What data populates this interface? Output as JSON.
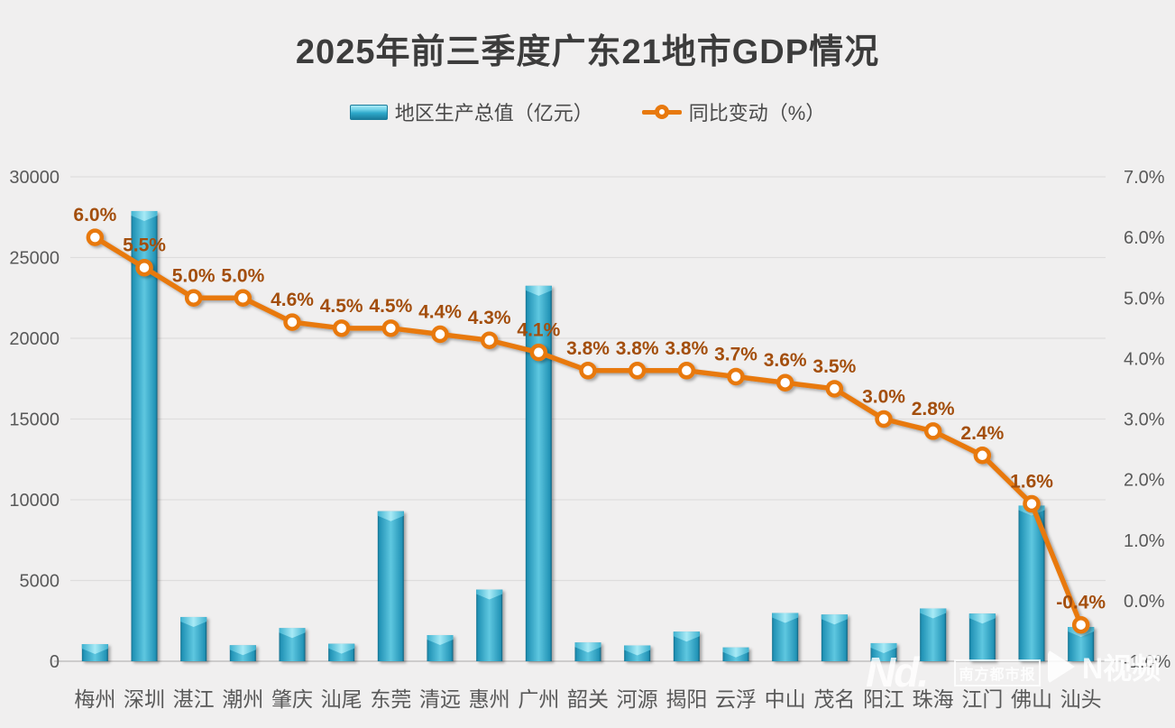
{
  "title": "2025年前三季度广东21地市GDP情况",
  "legend": {
    "bar_label": "地区生产总值（亿元）",
    "line_label": "同比变动（%）"
  },
  "chart_data": {
    "type": "bar",
    "title": "2025年前三季度广东21地市GDP情况",
    "categories": [
      "梅州",
      "深圳",
      "湛江",
      "潮州",
      "肇庆",
      "汕尾",
      "东莞",
      "清远",
      "惠州",
      "广州",
      "韶关",
      "河源",
      "揭阳",
      "云浮",
      "中山",
      "茂名",
      "阳江",
      "珠海",
      "江门",
      "佛山",
      "汕头"
    ],
    "series": [
      {
        "name": "地区生产总值（亿元）",
        "type": "bar",
        "axis": "left",
        "values": [
          1060,
          27880,
          2740,
          990,
          2050,
          1080,
          9290,
          1620,
          4440,
          23250,
          1160,
          980,
          1830,
          850,
          2990,
          2890,
          1120,
          3270,
          2950,
          9640,
          2120
        ]
      },
      {
        "name": "同比变动（%）",
        "type": "line",
        "axis": "right",
        "values": [
          6.0,
          5.5,
          5.0,
          5.0,
          4.6,
          4.5,
          4.5,
          4.4,
          4.3,
          4.1,
          3.8,
          3.8,
          3.8,
          3.7,
          3.6,
          3.5,
          3.0,
          2.8,
          2.4,
          1.6,
          -0.4
        ],
        "labels": [
          "6.0%",
          "5.5%",
          "5.0%",
          "5.0%",
          "4.6%",
          "4.5%",
          "4.5%",
          "4.4%",
          "4.3%",
          "4.1%",
          "3.8%",
          "3.8%",
          "3.8%",
          "3.7%",
          "3.6%",
          "3.5%",
          "3.0%",
          "2.8%",
          "2.4%",
          "1.6%",
          "-0.4%"
        ]
      }
    ],
    "left_axis": {
      "min": 0,
      "max": 30000,
      "step": 5000,
      "ticks": [
        "30000",
        "25000",
        "20000",
        "15000",
        "10000",
        "5000",
        "0"
      ]
    },
    "right_axis": {
      "min": -1,
      "max": 7,
      "step": 1,
      "ticks": [
        "7.0%",
        "6.0%",
        "5.0%",
        "4.0%",
        "3.0%",
        "2.0%",
        "1.0%",
        "0.0%",
        "-1.0%"
      ]
    },
    "grid": "horizontal",
    "legend_position": "top",
    "colors": {
      "background": "#f0efef",
      "bar_main": "#2fa9cb",
      "bar_light": "#5ec7e0",
      "bar_dark": "#15718f",
      "bar_cap": "#a8eaf6",
      "line": "#e8790e",
      "marker_fill": "#ffffff",
      "data_label": "#a34e0c",
      "axis_text": "#595959",
      "gridline": "#dedddd",
      "baseline": "#cdcccc",
      "title_text": "#3c3c3c"
    }
  },
  "watermark": {
    "nd_logo": "Nd.",
    "paper": "南方都市报",
    "nvideo": "N视频"
  }
}
